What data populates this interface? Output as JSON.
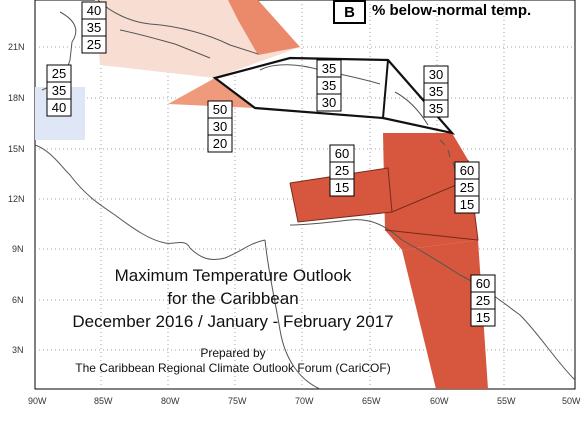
{
  "legend": {
    "letter": "B",
    "label": "% below-normal temp."
  },
  "title": {
    "line1": "Maximum Temperature Outlook",
    "line2": "for the Caribbean",
    "line3": "December 2016 / January - February 2017"
  },
  "prepared": {
    "line1": "Prepared by",
    "line2": "The Caribbean Regional Climate Outlook Forum (CariCOF)"
  },
  "lat_labels": [
    "21N",
    "18N",
    "15N",
    "12N",
    "9N",
    "6N",
    "3N"
  ],
  "lon_labels": [
    "90W",
    "85W",
    "80W",
    "75W",
    "70W",
    "65W",
    "60W",
    "55W",
    "50W"
  ],
  "forecast_boxes": [
    {
      "name": "cuba",
      "values": [
        "40",
        "35",
        "25"
      ]
    },
    {
      "name": "central-america-north",
      "values": [
        "25",
        "35",
        "40"
      ]
    },
    {
      "name": "jamaica",
      "values": [
        "50",
        "30",
        "20"
      ]
    },
    {
      "name": "hispaniola-puerto-rico",
      "values": [
        "35",
        "35",
        "30"
      ]
    },
    {
      "name": "leeward-islands",
      "values": [
        "30",
        "35",
        "35"
      ]
    },
    {
      "name": "caribbean-sea-south",
      "values": [
        "60",
        "25",
        "15"
      ]
    },
    {
      "name": "windward-islands",
      "values": [
        "60",
        "25",
        "15"
      ]
    },
    {
      "name": "guianas",
      "values": [
        "60",
        "25",
        "15"
      ]
    }
  ],
  "colors": {
    "above_60": "#d6573e",
    "above_50": "#ef9a7d",
    "above_40": "#f8ddd2",
    "below_40": "#dfe6f5",
    "land": "#555555"
  }
}
